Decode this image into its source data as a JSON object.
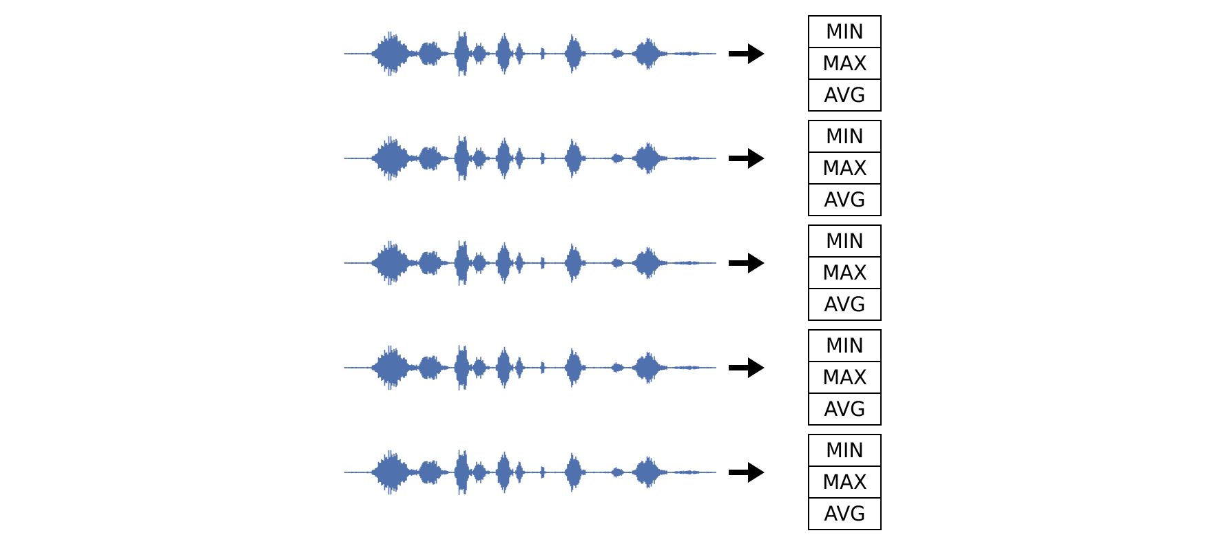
{
  "colors": {
    "waveform": "#4f71ad",
    "arrow": "#000000",
    "box_border": "#000000"
  },
  "rows": [
    {
      "stats": [
        "MIN",
        "MAX",
        "AVG"
      ]
    },
    {
      "stats": [
        "MIN",
        "MAX",
        "AVG"
      ]
    },
    {
      "stats": [
        "MIN",
        "MAX",
        "AVG"
      ]
    },
    {
      "stats": [
        "MIN",
        "MAX",
        "AVG"
      ]
    },
    {
      "stats": [
        "MIN",
        "MAX",
        "AVG"
      ]
    }
  ],
  "icons": {
    "waveform": "audio-waveform-icon",
    "arrow": "right-arrow-icon"
  }
}
